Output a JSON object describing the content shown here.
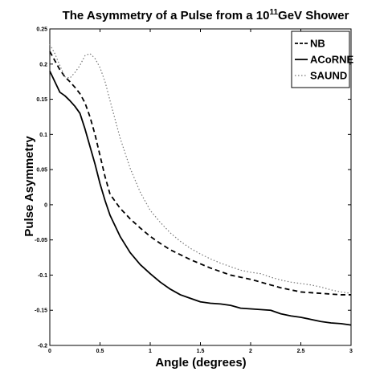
{
  "chart_data": {
    "type": "line",
    "title_parts": {
      "pre": "The Asymmetry of a Pulse from a 10",
      "sup": "11",
      "post": "GeV Shower"
    },
    "xlabel": "Angle (degrees)",
    "ylabel": "Pulse Asymmetry",
    "xlim": [
      0,
      3
    ],
    "ylim": [
      -0.2,
      0.25
    ],
    "x_ticks": [
      0,
      0.5,
      1,
      1.5,
      2,
      2.5,
      3
    ],
    "x_tick_labels": [
      "0",
      "0.5",
      "1",
      "1.5",
      "2",
      "2.5",
      "3"
    ],
    "y_ticks": [
      -0.2,
      -0.15,
      -0.1,
      -0.05,
      0,
      0.05,
      0.1,
      0.15,
      0.2,
      0.25
    ],
    "y_tick_labels": [
      "-0.2",
      "-0.15",
      "-0.1",
      "-0.05",
      "0",
      "0.05",
      "0.1",
      "0.15",
      "0.2",
      "0.25"
    ],
    "grid": false,
    "legend_position": "top-right",
    "series": [
      {
        "name": "NB",
        "style": "dashed",
        "color": "#000000",
        "x": [
          0,
          0.05,
          0.1,
          0.15,
          0.2,
          0.25,
          0.3,
          0.35,
          0.4,
          0.45,
          0.5,
          0.55,
          0.6,
          0.7,
          0.8,
          0.9,
          1.0,
          1.1,
          1.2,
          1.3,
          1.4,
          1.5,
          1.6,
          1.7,
          1.8,
          1.9,
          2.0,
          2.1,
          2.2,
          2.3,
          2.4,
          2.5,
          2.6,
          2.7,
          2.8,
          2.9,
          3.0
        ],
        "y": [
          0.218,
          0.205,
          0.192,
          0.182,
          0.175,
          0.167,
          0.158,
          0.145,
          0.125,
          0.1,
          0.07,
          0.04,
          0.015,
          -0.005,
          -0.02,
          -0.033,
          -0.045,
          -0.055,
          -0.064,
          -0.071,
          -0.078,
          -0.084,
          -0.09,
          -0.095,
          -0.1,
          -0.103,
          -0.106,
          -0.11,
          -0.114,
          -0.118,
          -0.121,
          -0.124,
          -0.125,
          -0.126,
          -0.127,
          -0.128,
          -0.128
        ]
      },
      {
        "name": "ACoRNE",
        "style": "solid",
        "color": "#000000",
        "x": [
          0,
          0.05,
          0.1,
          0.15,
          0.2,
          0.25,
          0.3,
          0.35,
          0.4,
          0.45,
          0.5,
          0.55,
          0.6,
          0.7,
          0.8,
          0.9,
          1.0,
          1.1,
          1.2,
          1.3,
          1.4,
          1.5,
          1.6,
          1.7,
          1.8,
          1.9,
          2.0,
          2.1,
          2.2,
          2.3,
          2.4,
          2.5,
          2.6,
          2.7,
          2.8,
          2.9,
          3.0
        ],
        "y": [
          0.19,
          0.175,
          0.16,
          0.155,
          0.148,
          0.14,
          0.13,
          0.108,
          0.083,
          0.058,
          0.03,
          0.006,
          -0.015,
          -0.045,
          -0.068,
          -0.085,
          -0.098,
          -0.11,
          -0.12,
          -0.128,
          -0.133,
          -0.138,
          -0.14,
          -0.141,
          -0.143,
          -0.147,
          -0.148,
          -0.149,
          -0.15,
          -0.155,
          -0.158,
          -0.16,
          -0.163,
          -0.166,
          -0.168,
          -0.169,
          -0.171
        ]
      },
      {
        "name": "SAUND",
        "style": "dotted",
        "color": "#000000",
        "x": [
          0,
          0.05,
          0.1,
          0.15,
          0.2,
          0.25,
          0.3,
          0.35,
          0.4,
          0.45,
          0.5,
          0.55,
          0.6,
          0.7,
          0.8,
          0.9,
          1.0,
          1.1,
          1.2,
          1.3,
          1.4,
          1.5,
          1.6,
          1.7,
          1.8,
          1.9,
          2.0,
          2.1,
          2.2,
          2.3,
          2.4,
          2.5,
          2.6,
          2.7,
          2.8,
          2.9,
          3.0
        ],
        "y": [
          0.228,
          0.215,
          0.198,
          0.182,
          0.18,
          0.188,
          0.198,
          0.212,
          0.215,
          0.208,
          0.195,
          0.175,
          0.148,
          0.095,
          0.052,
          0.018,
          -0.008,
          -0.025,
          -0.04,
          -0.052,
          -0.062,
          -0.07,
          -0.077,
          -0.083,
          -0.088,
          -0.093,
          -0.096,
          -0.098,
          -0.103,
          -0.107,
          -0.11,
          -0.112,
          -0.114,
          -0.117,
          -0.121,
          -0.124,
          -0.126
        ]
      }
    ]
  }
}
